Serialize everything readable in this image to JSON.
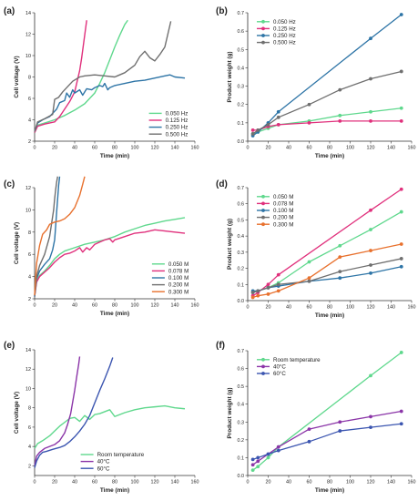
{
  "palette": {
    "green": "#5fd88d",
    "magenta": "#e0307c",
    "blue": "#2d74a6",
    "grey": "#6f6f6f",
    "orange": "#e8712e",
    "purple": "#8b35a8",
    "darkblue": "#3b55b0"
  },
  "chart_data": [
    {
      "id": "a",
      "panel_label": "(a)",
      "type": "line",
      "xlabel": "Time (min)",
      "ylabel": "Cell voltage (V)",
      "xlim": [
        0,
        160
      ],
      "ylim": [
        2,
        14
      ],
      "xticks": [
        0,
        20,
        40,
        60,
        80,
        100,
        120,
        140,
        160
      ],
      "yticks": [
        2,
        4,
        6,
        8,
        10,
        12,
        14
      ],
      "markers": false,
      "legend": {
        "position": "bottom-right"
      },
      "series": [
        {
          "name": "0.050 Hz",
          "color": "#5fd88d",
          "x": [
            0,
            3,
            10,
            20,
            30,
            40,
            50,
            60,
            65,
            70,
            75,
            80,
            85,
            90,
            93
          ],
          "y": [
            2.8,
            3.5,
            3.7,
            4.0,
            4.4,
            4.9,
            5.5,
            6.5,
            7.4,
            8.4,
            9.6,
            10.8,
            11.9,
            12.9,
            13.3
          ]
        },
        {
          "name": "0.125 Hz",
          "color": "#e0307c",
          "x": [
            0,
            3,
            10,
            20,
            25,
            30,
            35,
            40,
            42,
            45,
            47,
            49,
            51,
            52
          ],
          "y": [
            2.8,
            3.4,
            3.6,
            3.8,
            4.3,
            5.0,
            5.7,
            6.6,
            7.4,
            8.6,
            9.8,
            11.2,
            12.6,
            13.3
          ]
        },
        {
          "name": "0.250 Hz",
          "color": "#2d74a6",
          "x": [
            0,
            3,
            8,
            15,
            22,
            25,
            30,
            32,
            35,
            38,
            40,
            45,
            48,
            52,
            57,
            60,
            65,
            68,
            70,
            73,
            75,
            80,
            90,
            100,
            110,
            120,
            130,
            135,
            140,
            150
          ],
          "y": [
            2.9,
            3.7,
            4.0,
            4.3,
            5.0,
            5.6,
            5.8,
            6.5,
            6.1,
            6.8,
            6.5,
            6.8,
            6.3,
            6.9,
            6.8,
            7.0,
            7.2,
            7.1,
            7.4,
            6.8,
            7.0,
            7.2,
            7.4,
            7.6,
            7.7,
            7.9,
            8.1,
            8.2,
            8.0,
            7.9
          ]
        },
        {
          "name": "0.500 Hz",
          "color": "#6f6f6f",
          "x": [
            0,
            3,
            10,
            18,
            20,
            24,
            28,
            33,
            38,
            45,
            50,
            60,
            70,
            80,
            90,
            100,
            105,
            110,
            115,
            120,
            125,
            130,
            133,
            136
          ],
          "y": [
            2.9,
            3.8,
            4.1,
            4.5,
            5.9,
            6.1,
            6.6,
            7.1,
            7.6,
            8.0,
            8.1,
            8.2,
            8.1,
            8.0,
            8.4,
            9.1,
            9.9,
            10.4,
            9.8,
            9.5,
            10.1,
            10.8,
            12.0,
            13.2
          ]
        }
      ]
    },
    {
      "id": "b",
      "panel_label": "(b)",
      "type": "line",
      "xlabel": "Time (min)",
      "ylabel": "Product weight (g)",
      "xlim": [
        0,
        160
      ],
      "ylim": [
        0,
        0.7
      ],
      "xticks": [
        0,
        20,
        40,
        60,
        80,
        100,
        120,
        140,
        160
      ],
      "yticks": [
        0,
        0.1,
        0.2,
        0.3,
        0.4,
        0.5,
        0.6,
        0.7
      ],
      "markers": true,
      "legend": {
        "position": "top-left"
      },
      "series": [
        {
          "name": "0.050 Hz",
          "color": "#5fd88d",
          "x": [
            5,
            10,
            20,
            30,
            60,
            90,
            120,
            150
          ],
          "y": [
            0.04,
            0.05,
            0.07,
            0.09,
            0.11,
            0.14,
            0.16,
            0.18
          ]
        },
        {
          "name": "0.125 Hz",
          "color": "#e0307c",
          "x": [
            5,
            10,
            20,
            30,
            60,
            90,
            120,
            150
          ],
          "y": [
            0.06,
            0.06,
            0.08,
            0.09,
            0.1,
            0.11,
            0.11,
            0.11
          ]
        },
        {
          "name": "0.250 Hz",
          "color": "#2d74a6",
          "x": [
            5,
            10,
            20,
            30,
            120,
            150
          ],
          "y": [
            0.03,
            0.05,
            0.1,
            0.16,
            0.56,
            0.69
          ]
        },
        {
          "name": "0.500 Hz",
          "color": "#6f6f6f",
          "x": [
            5,
            10,
            20,
            30,
            60,
            90,
            120,
            150
          ],
          "y": [
            0.04,
            0.06,
            0.09,
            0.13,
            0.2,
            0.28,
            0.34,
            0.38
          ]
        }
      ]
    },
    {
      "id": "c",
      "panel_label": "(c)",
      "type": "line",
      "xlabel": "Time (min)",
      "ylabel": "Cell voltage (V)",
      "xlim": [
        0,
        160
      ],
      "ylim": [
        2,
        12
      ],
      "xticks": [
        0,
        20,
        40,
        60,
        80,
        100,
        120,
        140,
        160
      ],
      "yticks": [
        2,
        4,
        6,
        8,
        10,
        12
      ],
      "markers": false,
      "legend": {
        "position": "bottom-right"
      },
      "series": [
        {
          "name": "0.050 M",
          "color": "#5fd88d",
          "x": [
            0,
            2,
            5,
            10,
            15,
            20,
            25,
            30,
            40,
            50,
            60,
            70,
            80,
            90,
            100,
            110,
            120,
            130,
            140,
            150
          ],
          "y": [
            2.2,
            3.6,
            4.1,
            4.5,
            5.0,
            5.6,
            6.0,
            6.3,
            6.6,
            6.9,
            7.1,
            7.3,
            7.6,
            8.0,
            8.3,
            8.6,
            8.8,
            9.0,
            9.15,
            9.3
          ]
        },
        {
          "name": "0.078 M",
          "color": "#e0307c",
          "x": [
            0,
            2,
            5,
            10,
            15,
            20,
            25,
            30,
            35,
            40,
            45,
            48,
            52,
            55,
            58,
            60,
            65,
            70,
            75,
            78,
            80,
            90,
            100,
            110,
            120,
            130,
            140,
            150
          ],
          "y": [
            2.2,
            3.5,
            4.0,
            4.4,
            4.8,
            5.3,
            5.7,
            6.0,
            6.1,
            6.3,
            6.6,
            6.2,
            6.6,
            6.4,
            6.7,
            6.9,
            7.1,
            7.3,
            7.4,
            7.1,
            7.3,
            7.6,
            7.9,
            8.0,
            8.2,
            8.1,
            8.0,
            7.9
          ]
        },
        {
          "name": "0.100 M",
          "color": "#2d74a6",
          "x": [
            0,
            2,
            5,
            10,
            15,
            18,
            20,
            21,
            22,
            23,
            24,
            25
          ],
          "y": [
            2.2,
            3.8,
            4.5,
            5.1,
            5.6,
            6.4,
            7.3,
            8.5,
            9.8,
            11.0,
            12.2,
            13.0
          ]
        },
        {
          "name": "0.200 M",
          "color": "#6f6f6f",
          "x": [
            0,
            2,
            5,
            10,
            15,
            17,
            19,
            20,
            21,
            22,
            23
          ],
          "y": [
            2.3,
            4.0,
            5.0,
            6.0,
            7.6,
            8.8,
            10.0,
            11.0,
            11.8,
            12.5,
            13.0
          ]
        },
        {
          "name": "0.300 M",
          "color": "#e8712e",
          "x": [
            0,
            2,
            5,
            8,
            12,
            15,
            20,
            25,
            30,
            35,
            40,
            45,
            48,
            50
          ],
          "y": [
            2.3,
            5.2,
            6.8,
            7.8,
            8.2,
            8.7,
            8.9,
            9.0,
            9.2,
            9.6,
            10.2,
            11.3,
            12.3,
            13.0
          ]
        }
      ]
    },
    {
      "id": "d",
      "panel_label": "(d)",
      "type": "line",
      "xlabel": "Time (min)",
      "ylabel": "Product weight (g)",
      "xlim": [
        0,
        160
      ],
      "ylim": [
        0,
        0.7
      ],
      "xticks": [
        0,
        20,
        40,
        60,
        80,
        100,
        120,
        140,
        160
      ],
      "yticks": [
        0,
        0.1,
        0.2,
        0.3,
        0.4,
        0.5,
        0.6,
        0.7
      ],
      "markers": true,
      "legend": {
        "position": "top-left"
      },
      "series": [
        {
          "name": "0.050 M",
          "color": "#5fd88d",
          "x": [
            5,
            10,
            20,
            30,
            60,
            90,
            120,
            150
          ],
          "y": [
            0.05,
            0.06,
            0.08,
            0.11,
            0.24,
            0.34,
            0.44,
            0.55
          ]
        },
        {
          "name": "0.078 M",
          "color": "#e0307c",
          "x": [
            5,
            10,
            20,
            30,
            120,
            150
          ],
          "y": [
            0.03,
            0.05,
            0.1,
            0.16,
            0.56,
            0.69
          ]
        },
        {
          "name": "0.100 M",
          "color": "#2d74a6",
          "x": [
            5,
            10,
            20,
            30,
            60,
            90,
            120,
            150
          ],
          "y": [
            0.06,
            0.06,
            0.08,
            0.09,
            0.12,
            0.14,
            0.17,
            0.21
          ]
        },
        {
          "name": "0.200 M",
          "color": "#6f6f6f",
          "x": [
            5,
            10,
            20,
            30,
            60,
            90,
            120,
            150
          ],
          "y": [
            0.05,
            0.06,
            0.08,
            0.1,
            0.12,
            0.18,
            0.22,
            0.26
          ]
        },
        {
          "name": "0.300 M",
          "color": "#e8712e",
          "x": [
            5,
            10,
            20,
            30,
            60,
            90,
            120,
            150
          ],
          "y": [
            0.02,
            0.03,
            0.04,
            0.06,
            0.14,
            0.27,
            0.31,
            0.35
          ]
        }
      ]
    },
    {
      "id": "e",
      "panel_label": "(e)",
      "type": "line",
      "xlabel": "Time (min)",
      "ylabel": "Cell voltage (V)",
      "xlim": [
        0,
        160
      ],
      "ylim": [
        1,
        14
      ],
      "xticks": [
        0,
        20,
        40,
        60,
        80,
        100,
        120,
        140,
        160
      ],
      "yticks": [
        2,
        4,
        6,
        8,
        10,
        12,
        14
      ],
      "markers": false,
      "legend": {
        "position": "bottom-center"
      },
      "series": [
        {
          "name": "Room temperature",
          "color": "#5fd88d",
          "x": [
            0,
            3,
            8,
            15,
            20,
            25,
            30,
            35,
            40,
            45,
            50,
            55,
            60,
            65,
            70,
            75,
            80,
            90,
            100,
            110,
            120,
            130,
            140,
            150
          ],
          "y": [
            3.8,
            4.3,
            4.6,
            5.1,
            5.6,
            6.1,
            6.5,
            6.9,
            7.0,
            6.6,
            7.2,
            6.8,
            7.3,
            7.4,
            7.6,
            7.8,
            7.1,
            7.5,
            7.8,
            8.0,
            8.1,
            8.2,
            8.0,
            7.9
          ]
        },
        {
          "name": "40°C",
          "color": "#8b35a8",
          "x": [
            0,
            2,
            5,
            10,
            15,
            20,
            25,
            30,
            33,
            36,
            38,
            40,
            42,
            44,
            45
          ],
          "y": [
            2.0,
            3.0,
            3.4,
            3.8,
            4.0,
            4.2,
            4.6,
            5.4,
            6.3,
            7.4,
            8.6,
            9.8,
            11.2,
            12.5,
            13.3
          ]
        },
        {
          "name": "60°C",
          "color": "#3b55b0",
          "x": [
            0,
            2,
            5,
            8,
            12,
            18,
            25,
            30,
            35,
            40,
            45,
            50,
            55,
            60,
            65,
            70,
            75,
            78
          ],
          "y": [
            1.8,
            2.5,
            3.1,
            3.4,
            3.5,
            3.7,
            3.9,
            4.1,
            4.5,
            5.0,
            5.6,
            6.3,
            7.2,
            8.5,
            9.8,
            11.0,
            12.3,
            13.2
          ]
        }
      ]
    },
    {
      "id": "f",
      "panel_label": "(f)",
      "type": "line",
      "xlabel": "Time (min)",
      "ylabel": "Product weight (g)",
      "xlim": [
        0,
        160
      ],
      "ylim": [
        0,
        0.7
      ],
      "xticks": [
        0,
        20,
        40,
        60,
        80,
        100,
        120,
        140,
        160
      ],
      "yticks": [
        0,
        0.1,
        0.2,
        0.3,
        0.4,
        0.5,
        0.6,
        0.7
      ],
      "markers": true,
      "legend": {
        "position": "top-left"
      },
      "series": [
        {
          "name": "Room temperature",
          "color": "#5fd88d",
          "x": [
            5,
            10,
            20,
            30,
            120,
            150
          ],
          "y": [
            0.03,
            0.05,
            0.1,
            0.16,
            0.56,
            0.69
          ]
        },
        {
          "name": "40°C",
          "color": "#8b35a8",
          "x": [
            5,
            10,
            20,
            30,
            60,
            90,
            120,
            150
          ],
          "y": [
            0.06,
            0.08,
            0.12,
            0.16,
            0.26,
            0.3,
            0.33,
            0.36
          ]
        },
        {
          "name": "60°C",
          "color": "#3b55b0",
          "x": [
            5,
            10,
            20,
            30,
            60,
            90,
            120,
            150
          ],
          "y": [
            0.09,
            0.1,
            0.12,
            0.14,
            0.19,
            0.25,
            0.27,
            0.29
          ]
        }
      ]
    }
  ]
}
